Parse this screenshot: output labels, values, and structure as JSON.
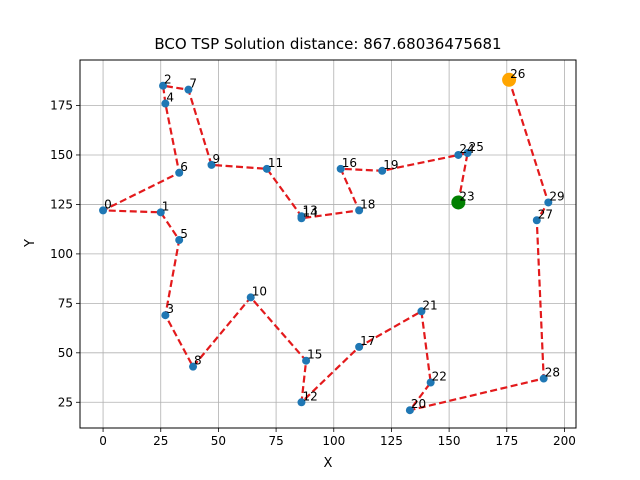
{
  "chart_data": {
    "type": "line",
    "title": "BCO TSP Solution distance: 867.68036475681",
    "xlabel": "X",
    "ylabel": "Y",
    "xlim": [
      -10,
      205
    ],
    "ylim": [
      12,
      198
    ],
    "xticks": [
      0,
      25,
      50,
      75,
      100,
      125,
      150,
      175,
      200
    ],
    "yticks": [
      25,
      50,
      75,
      100,
      125,
      150,
      175
    ],
    "grid": true,
    "colors": {
      "points": "#1f77b4",
      "route": "#e31a1c",
      "start": "#008000",
      "end": "#ffa500"
    },
    "cities": [
      {
        "id": "0",
        "x": 0,
        "y": 122
      },
      {
        "id": "1",
        "x": 25,
        "y": 121
      },
      {
        "id": "2",
        "x": 26,
        "y": 185
      },
      {
        "id": "3",
        "x": 27,
        "y": 69
      },
      {
        "id": "4",
        "x": 27,
        "y": 176
      },
      {
        "id": "5",
        "x": 33,
        "y": 107
      },
      {
        "id": "6",
        "x": 33,
        "y": 141
      },
      {
        "id": "7",
        "x": 37,
        "y": 183
      },
      {
        "id": "8",
        "x": 39,
        "y": 43
      },
      {
        "id": "9",
        "x": 47,
        "y": 145
      },
      {
        "id": "10",
        "x": 64,
        "y": 78
      },
      {
        "id": "11",
        "x": 71,
        "y": 143
      },
      {
        "id": "12",
        "x": 86,
        "y": 25
      },
      {
        "id": "13",
        "x": 86,
        "y": 119
      },
      {
        "id": "14",
        "x": 86,
        "y": 118
      },
      {
        "id": "15",
        "x": 88,
        "y": 46
      },
      {
        "id": "16",
        "x": 103,
        "y": 143
      },
      {
        "id": "17",
        "x": 111,
        "y": 53
      },
      {
        "id": "18",
        "x": 111,
        "y": 122
      },
      {
        "id": "19",
        "x": 121,
        "y": 142
      },
      {
        "id": "20",
        "x": 133,
        "y": 21
      },
      {
        "id": "21",
        "x": 138,
        "y": 71
      },
      {
        "id": "22",
        "x": 142,
        "y": 35
      },
      {
        "id": "23",
        "x": 154,
        "y": 126
      },
      {
        "id": "24",
        "x": 154,
        "y": 150
      },
      {
        "id": "25",
        "x": 158,
        "y": 151
      },
      {
        "id": "26",
        "x": 176,
        "y": 188
      },
      {
        "id": "27",
        "x": 188,
        "y": 117
      },
      {
        "id": "28",
        "x": 191,
        "y": 37
      },
      {
        "id": "29",
        "x": 193,
        "y": 126
      }
    ],
    "route": [
      "23",
      "25",
      "24",
      "19",
      "16",
      "18",
      "14",
      "13",
      "11",
      "9",
      "7",
      "2",
      "4",
      "6",
      "0",
      "1",
      "5",
      "3",
      "8",
      "10",
      "15",
      "12",
      "17",
      "21",
      "22",
      "20",
      "28",
      "27",
      "29",
      "26"
    ],
    "start": "23",
    "end": "26"
  }
}
